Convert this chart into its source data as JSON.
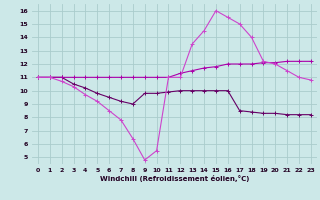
{
  "xlabel": "Windchill (Refroidissement éolien,°C)",
  "background_color": "#cce8e8",
  "grid_color": "#aacccc",
  "line_color1": "#aa00aa",
  "line_color2": "#cc44cc",
  "line_color3": "#660066",
  "xlim": [
    -0.5,
    23.5
  ],
  "ylim": [
    4.5,
    16.5
  ],
  "xticks": [
    0,
    1,
    2,
    3,
    4,
    5,
    6,
    7,
    8,
    9,
    10,
    11,
    12,
    13,
    14,
    15,
    16,
    17,
    18,
    19,
    20,
    21,
    22,
    23
  ],
  "yticks": [
    5,
    6,
    7,
    8,
    9,
    10,
    11,
    12,
    13,
    14,
    15,
    16
  ],
  "series1_x": [
    0,
    1,
    2,
    3,
    4,
    5,
    6,
    7,
    8,
    9,
    10,
    11,
    12,
    13,
    14,
    15,
    16,
    17,
    18,
    19,
    20,
    21,
    22,
    23
  ],
  "series1_y": [
    11,
    11,
    11,
    11,
    11,
    11,
    11,
    11,
    11,
    11,
    11,
    11,
    11.3,
    11.5,
    11.7,
    11.8,
    12,
    12,
    12,
    12.1,
    12.1,
    12.2,
    12.2,
    12.2
  ],
  "series2_x": [
    0,
    1,
    2,
    3,
    4,
    5,
    6,
    7,
    8,
    9,
    10,
    11,
    12,
    13,
    14,
    15,
    16,
    17,
    18,
    19,
    20,
    21,
    22,
    23
  ],
  "series2_y": [
    11,
    11,
    10.7,
    10.3,
    9.7,
    9.2,
    8.5,
    7.8,
    6.4,
    4.8,
    5.5,
    11.0,
    11.0,
    13.5,
    14.5,
    16.0,
    15.5,
    15.0,
    14.0,
    12.2,
    12.0,
    11.5,
    11.0,
    10.8
  ],
  "series3_x": [
    0,
    1,
    2,
    3,
    4,
    5,
    6,
    7,
    8,
    9,
    10,
    11,
    12,
    13,
    14,
    15,
    16,
    17,
    18,
    19,
    20,
    21,
    22,
    23
  ],
  "series3_y": [
    11,
    11,
    11,
    10.5,
    10.2,
    9.8,
    9.5,
    9.2,
    9.0,
    9.8,
    9.8,
    9.9,
    10.0,
    10.0,
    10.0,
    10.0,
    10.0,
    8.5,
    8.4,
    8.3,
    8.3,
    8.2,
    8.2,
    8.2
  ]
}
